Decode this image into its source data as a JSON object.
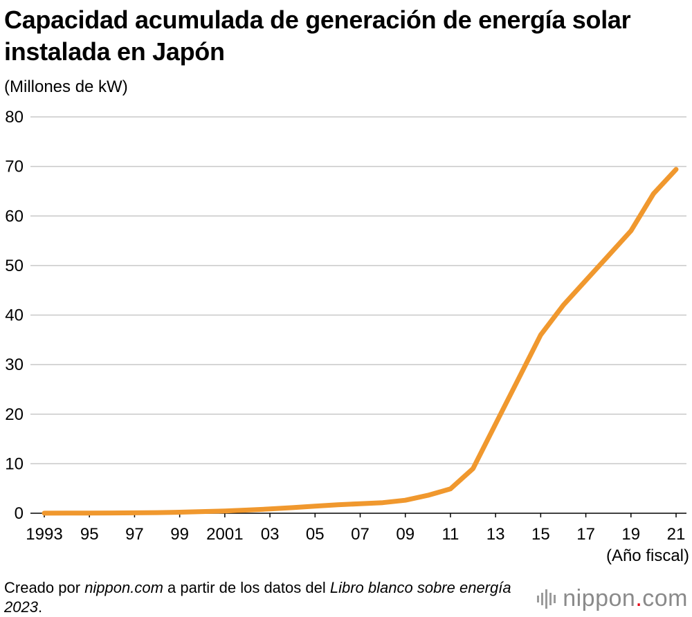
{
  "chart_data": {
    "type": "line",
    "title": "Capacidad acumulada de generación de energía solar instalada en Japón",
    "ylabel": "(Millones de kW)",
    "xlabel": "(Año fiscal)",
    "ylim": [
      0,
      80
    ],
    "yticks": [
      0,
      10,
      20,
      30,
      40,
      50,
      60,
      70,
      80
    ],
    "xlim": [
      1993,
      2021
    ],
    "xticks": [
      {
        "year": 1993,
        "label": "1993"
      },
      {
        "year": 1995,
        "label": "95"
      },
      {
        "year": 1997,
        "label": "97"
      },
      {
        "year": 1999,
        "label": "99"
      },
      {
        "year": 2001,
        "label": "2001"
      },
      {
        "year": 2003,
        "label": "03"
      },
      {
        "year": 2005,
        "label": "05"
      },
      {
        "year": 2007,
        "label": "07"
      },
      {
        "year": 2009,
        "label": "09"
      },
      {
        "year": 2011,
        "label": "11"
      },
      {
        "year": 2013,
        "label": "13"
      },
      {
        "year": 2015,
        "label": "15"
      },
      {
        "year": 2017,
        "label": "17"
      },
      {
        "year": 2019,
        "label": "19"
      },
      {
        "year": 2021,
        "label": "21"
      }
    ],
    "grid": true,
    "series": [
      {
        "name": "Capacidad acumulada",
        "color": "#f0982e",
        "x": [
          1993,
          1994,
          1995,
          1996,
          1997,
          1998,
          1999,
          2000,
          2001,
          2002,
          2003,
          2004,
          2005,
          2006,
          2007,
          2008,
          2009,
          2010,
          2011,
          2012,
          2013,
          2014,
          2015,
          2016,
          2017,
          2018,
          2019,
          2020,
          2021
        ],
        "values": [
          0.02,
          0.03,
          0.04,
          0.06,
          0.09,
          0.13,
          0.21,
          0.33,
          0.45,
          0.64,
          0.86,
          1.13,
          1.42,
          1.71,
          1.92,
          2.14,
          2.63,
          3.62,
          4.91,
          9.0,
          18.0,
          27.0,
          36.0,
          42.0,
          47.0,
          52.0,
          57.0,
          64.5,
          69.4
        ]
      }
    ],
    "colors": {
      "grid": "#c8c8c8",
      "axis": "#000000",
      "line": "#f0982e"
    }
  },
  "footer": {
    "prefix": "Creado por ",
    "source_site": "nippon.com",
    "middle": " a partir de los datos del ",
    "publication": "Libro blanco sobre energía 2023",
    "suffix": "."
  },
  "brand": {
    "name": "nippon",
    "dot": ".",
    "tld": "com",
    "icon": "sound-wave-icon",
    "dot_color": "#e60012"
  }
}
